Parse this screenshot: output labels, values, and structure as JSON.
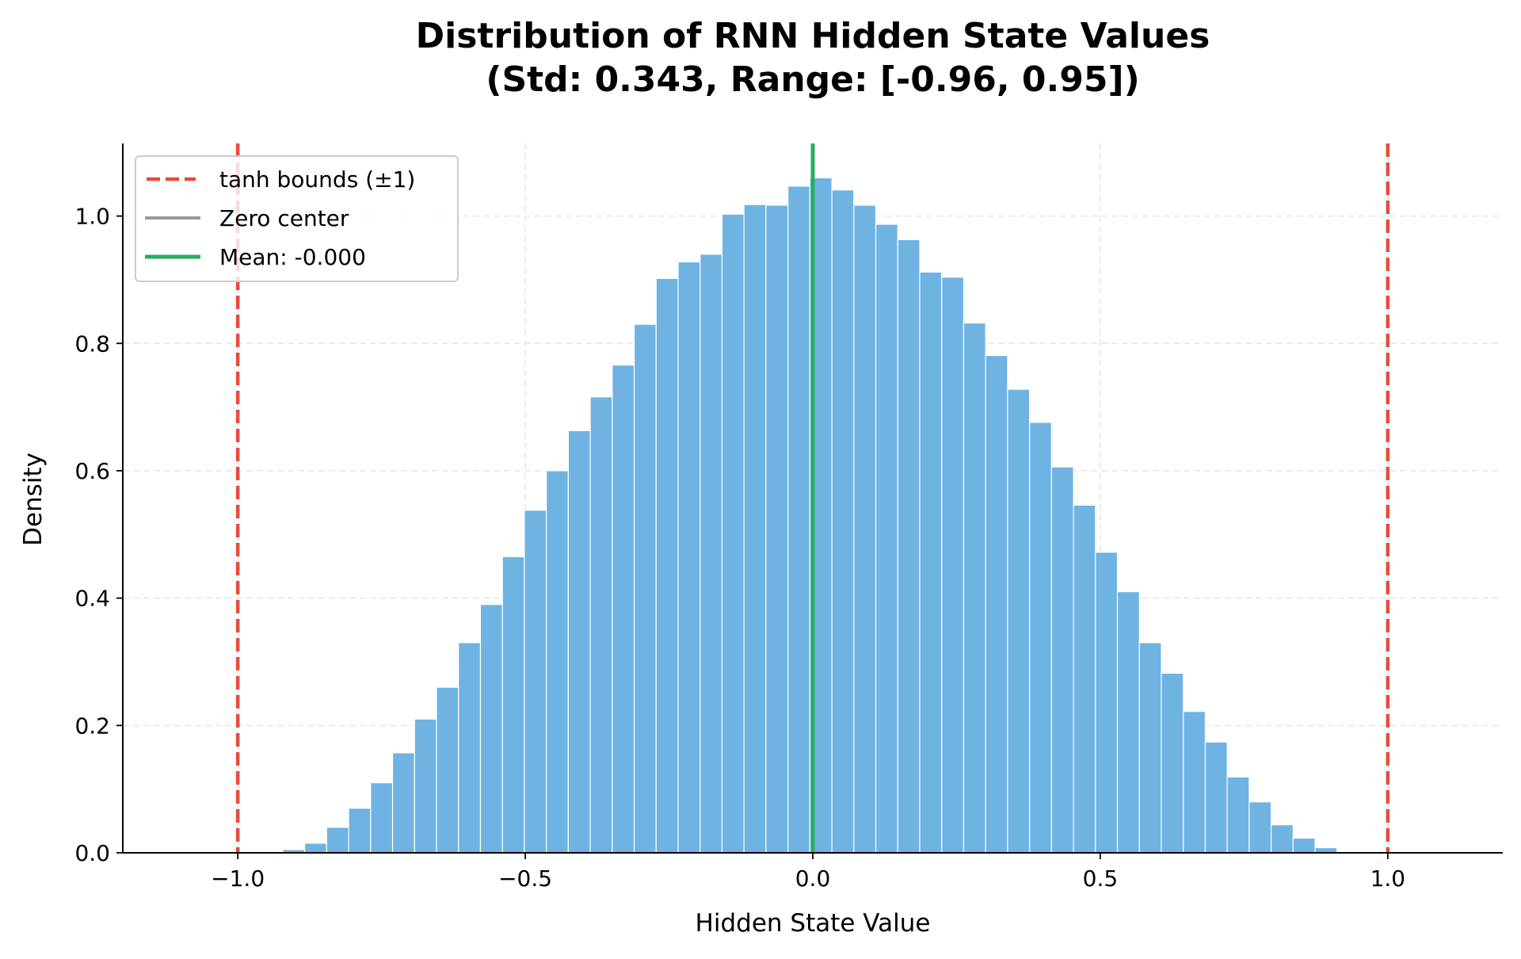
{
  "chart_data": {
    "type": "bar",
    "subtype": "histogram",
    "title": [
      "Distribution of RNN Hidden State Values",
      "(Std: 0.343, Range: [-0.96, 0.95])"
    ],
    "xlabel": "Hidden State Value",
    "ylabel": "Density",
    "xlim": [
      -1.2,
      1.2
    ],
    "ylim": [
      0,
      1.114
    ],
    "xticks": [
      -1.0,
      -0.5,
      0.0,
      0.5,
      1.0
    ],
    "xtick_labels": [
      "−1.0",
      "−0.5",
      "0.0",
      "0.5",
      "1.0"
    ],
    "yticks": [
      0.0,
      0.2,
      0.4,
      0.6,
      0.8,
      1.0
    ],
    "ytick_labels": [
      "0.0",
      "0.2",
      "0.4",
      "0.6",
      "0.8",
      "1.0"
    ],
    "grid": true,
    "bin_range": [
      -0.96,
      0.95
    ],
    "bins": 50,
    "densities": [
      0.001,
      0.005,
      0.015,
      0.04,
      0.07,
      0.11,
      0.157,
      0.21,
      0.26,
      0.33,
      0.39,
      0.465,
      0.538,
      0.6,
      0.663,
      0.716,
      0.766,
      0.83,
      0.902,
      0.928,
      0.94,
      1.003,
      1.018,
      1.017,
      1.047,
      1.06,
      1.041,
      1.017,
      0.987,
      0.963,
      0.912,
      0.904,
      0.832,
      0.781,
      0.728,
      0.676,
      0.606,
      0.546,
      0.472,
      0.41,
      0.33,
      0.282,
      0.222,
      0.174,
      0.119,
      0.08,
      0.044,
      0.023,
      0.008,
      0.001
    ],
    "bar_color": "#6fb3e3",
    "reference_lines": [
      {
        "name": "tanh bounds (±1)",
        "x": [
          -1.0,
          1.0
        ],
        "color": "#e74c3c",
        "style": "dashed"
      },
      {
        "name": "Zero center",
        "x": [
          0.0
        ],
        "color": "#999999",
        "style": "solid"
      },
      {
        "name": "Mean: -0.000",
        "x": [
          -0.0
        ],
        "color": "#27ae60",
        "style": "solid"
      }
    ],
    "legend": {
      "placement": "top-left",
      "entries": [
        "tanh bounds (±1)",
        "Zero center",
        "Mean: -0.000"
      ]
    }
  }
}
